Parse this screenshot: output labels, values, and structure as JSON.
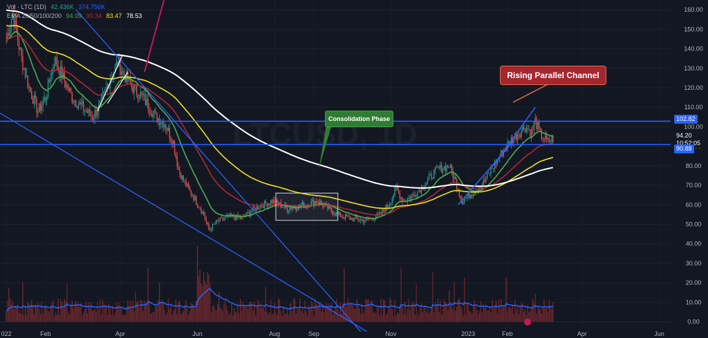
{
  "legend": {
    "row2_prefix": "Vol · LTC (1D)",
    "row2_value": "42.436K",
    "row2_value2": "374.756K",
    "row3_prefix": "EMA 20/50/100/200",
    "row3_values": [
      "94.09",
      "90.34",
      "83.47",
      "78.53"
    ]
  },
  "callouts": {
    "rising_channel": "Rising Parallel Channel",
    "consolidation": "Consolidation Phase"
  },
  "watermark": "LTCUSD, 1D",
  "price_tags": {
    "level_high": "102.82",
    "last_price": "94.20",
    "timer": "10:52:05",
    "level_low": "90.88"
  },
  "colors": {
    "background": "#131722",
    "up": "#26a69a",
    "down": "#ef5350",
    "ema20": "#4caf50",
    "ema50": "#b22833",
    "ema100": "#f2e21b",
    "ema200": "#ffffff",
    "trendline": "#2962ff",
    "vol_ma": "#2962ff"
  },
  "chart_data": {
    "type": "candlestick",
    "symbol": "LTCUSD",
    "interval": "1D",
    "ylim": [
      -3,
      165
    ],
    "y_ticks": [
      0,
      10,
      20,
      30,
      40,
      50,
      60,
      70,
      80,
      90,
      100,
      110,
      120,
      130,
      140,
      150,
      160
    ],
    "x_ticks": [
      "022",
      "Feb",
      "Apr",
      "Jun",
      "Aug",
      "Sep",
      "Nov",
      "2023",
      "Feb",
      "Apr",
      "Jun"
    ],
    "x_tick_days": [
      0,
      31,
      90,
      151,
      212,
      243,
      304,
      365,
      396,
      455,
      516
    ],
    "x_range_days": [
      -5,
      525
    ],
    "price_keypoints": [
      [
        0,
        145
      ],
      [
        5,
        158
      ],
      [
        12,
        135
      ],
      [
        18,
        120
      ],
      [
        25,
        108
      ],
      [
        31,
        115
      ],
      [
        38,
        135
      ],
      [
        45,
        125
      ],
      [
        52,
        115
      ],
      [
        60,
        110
      ],
      [
        68,
        105
      ],
      [
        75,
        112
      ],
      [
        82,
        125
      ],
      [
        88,
        133
      ],
      [
        92,
        128
      ],
      [
        100,
        120
      ],
      [
        108,
        115
      ],
      [
        118,
        105
      ],
      [
        125,
        102
      ],
      [
        132,
        92
      ],
      [
        136,
        78
      ],
      [
        142,
        70
      ],
      [
        150,
        62
      ],
      [
        156,
        55
      ],
      [
        160,
        47
      ],
      [
        168,
        52
      ],
      [
        178,
        54
      ],
      [
        186,
        53
      ],
      [
        196,
        58
      ],
      [
        210,
        62
      ],
      [
        222,
        58
      ],
      [
        236,
        60
      ],
      [
        246,
        62
      ],
      [
        255,
        58
      ],
      [
        262,
        55
      ],
      [
        272,
        53
      ],
      [
        285,
        52
      ],
      [
        295,
        55
      ],
      [
        302,
        60
      ],
      [
        308,
        68
      ],
      [
        314,
        62
      ],
      [
        322,
        65
      ],
      [
        330,
        70
      ],
      [
        340,
        78
      ],
      [
        350,
        80
      ],
      [
        355,
        72
      ],
      [
        360,
        62
      ],
      [
        368,
        66
      ],
      [
        378,
        72
      ],
      [
        385,
        80
      ],
      [
        392,
        87
      ],
      [
        400,
        94
      ],
      [
        410,
        100
      ],
      [
        415,
        97
      ],
      [
        418,
        103
      ],
      [
        422,
        96
      ],
      [
        428,
        92
      ],
      [
        432,
        94
      ]
    ],
    "volume_scale": "0-40 shared axis",
    "annotations": {
      "horizontal_levels": [
        102.82,
        90.88
      ],
      "consolidation_box": {
        "x": [
          213,
          262
        ],
        "y": [
          52,
          66
        ]
      },
      "rising_channel_lower": [
        [
          357,
          60
        ],
        [
          400,
          92
        ]
      ],
      "rising_channel_upper": [
        [
          385,
          80
        ],
        [
          418,
          110
        ]
      ],
      "descending_lines": [
        [
          [
            -5,
            107
          ],
          [
            285,
            -5
          ]
        ],
        [
          [
            55,
            160
          ],
          [
            280,
            -5
          ]
        ]
      ],
      "wedge_lines": [
        [
          [
            72,
            108
          ],
          [
            92,
            137
          ]
        ],
        [
          [
            80,
            112
          ],
          [
            96,
            128
          ]
        ]
      ]
    }
  }
}
